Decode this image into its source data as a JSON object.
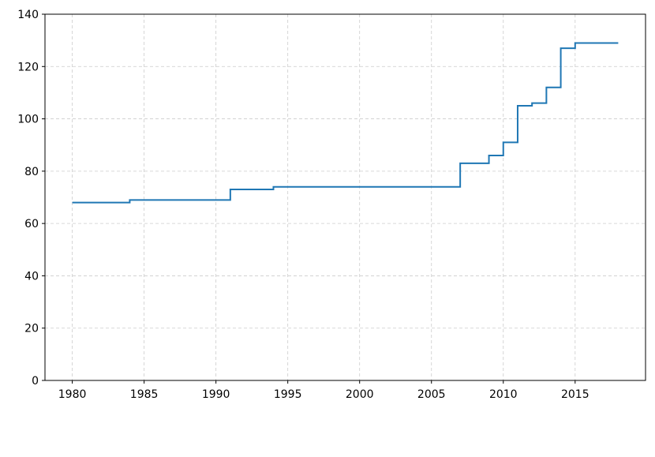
{
  "chart_data": {
    "type": "line",
    "step": "post",
    "x": [
      1980,
      1984,
      1991,
      1994,
      2007,
      2009,
      2010,
      2011,
      2012,
      2013,
      2014,
      2015,
      2018
    ],
    "series": [
      {
        "color": "#1f77b4",
        "values": [
          68,
          69,
          73,
          74,
          83,
          86,
          91,
          105,
          106,
          112,
          127,
          129,
          129
        ]
      }
    ],
    "xlim": [
      1978.1,
      2019.9
    ],
    "xticks": [
      1980,
      1985,
      1990,
      1995,
      2000,
      2005,
      2010,
      2015
    ],
    "ylim": [
      0,
      140
    ],
    "yticks": [
      0,
      20,
      40,
      60,
      80,
      100,
      120,
      140
    ],
    "grid": true
  }
}
